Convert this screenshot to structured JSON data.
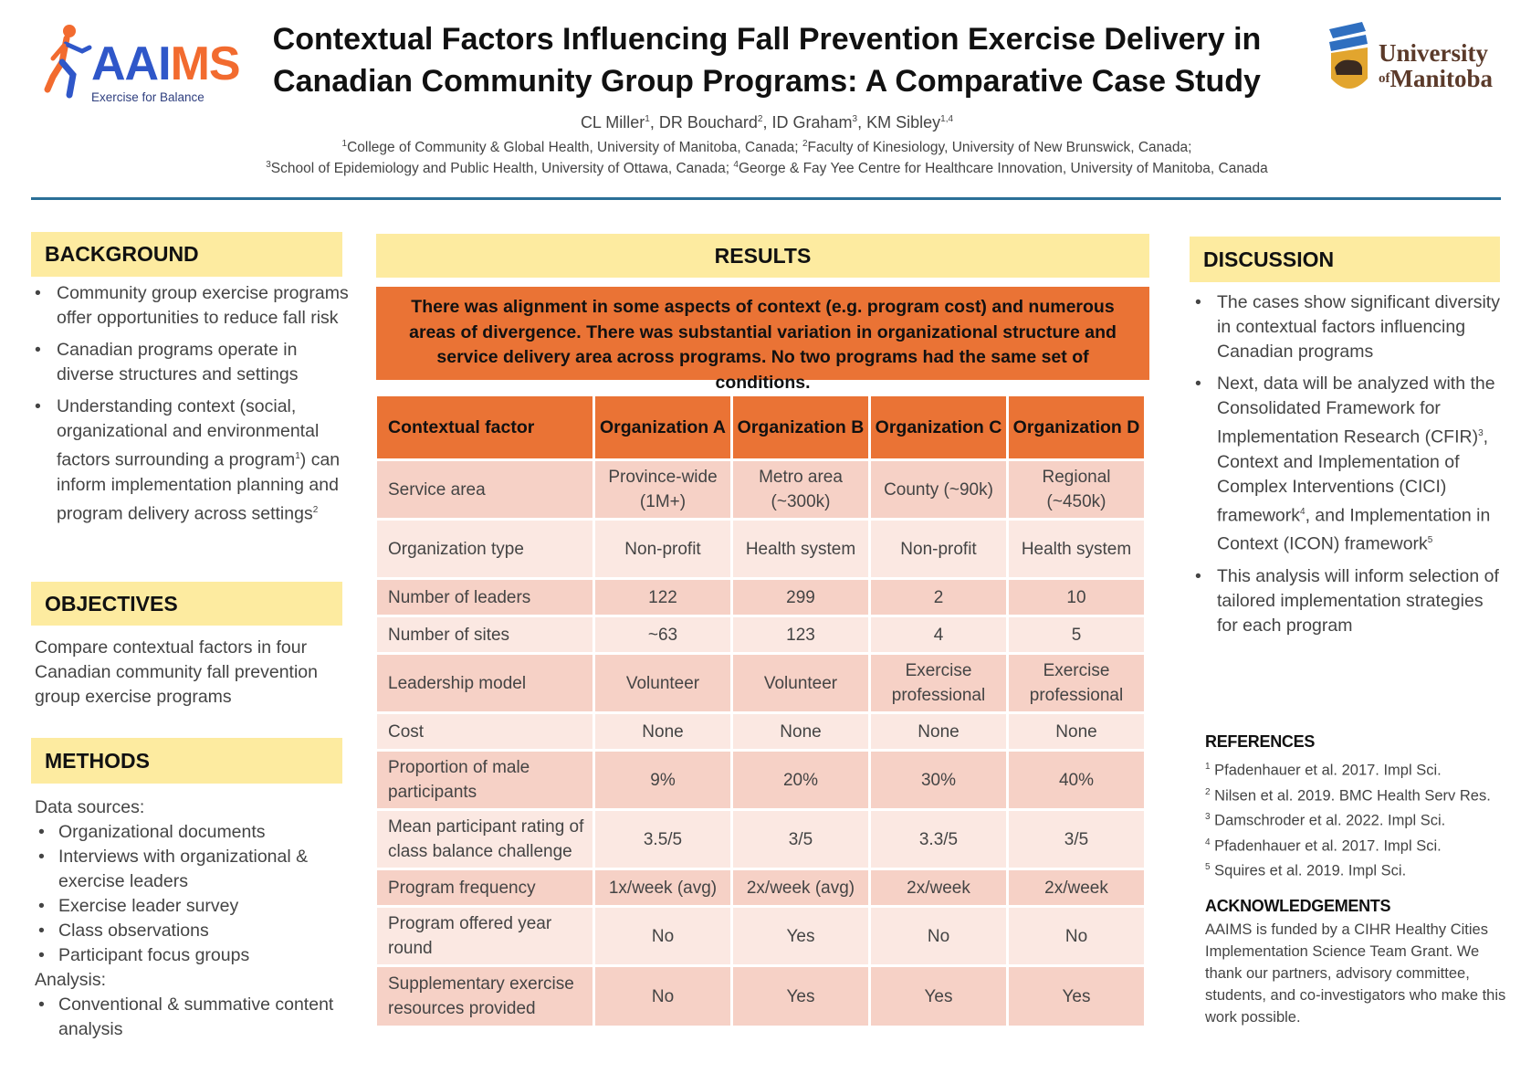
{
  "header": {
    "aaims_logo": {
      "name": "AAIMS",
      "tagline": "Exercise for Balance"
    },
    "title_line1": "Contextual Factors Influencing Fall Prevention Exercise Delivery in",
    "title_line2": "Canadian Community Group Programs: A Comparative Case Study",
    "authors": [
      {
        "name": "CL Miller",
        "sup": "1"
      },
      {
        "name": "DR Bouchard",
        "sup": "2"
      },
      {
        "name": "ID Graham",
        "sup": "3"
      },
      {
        "name": "KM Sibley",
        "sup": "1,4"
      }
    ],
    "affiliations": [
      {
        "sup": "1",
        "text": "College of Community & Global Health, University of Manitoba, Canada;"
      },
      {
        "sup": "2",
        "text": "Faculty of Kinesiology, University of New Brunswick, Canada;"
      },
      {
        "sup": "3",
        "text": "School of Epidemiology and Public Health, University of Ottawa, Canada;"
      },
      {
        "sup": "4",
        "text": "George & Fay Yee Centre for Healthcare Innovation, University of Manitoba, Canada"
      }
    ],
    "um_logo": {
      "line1": "University",
      "line2_of": "of",
      "line2": "Manitoba"
    }
  },
  "background": {
    "heading": "BACKGROUND",
    "bullets": [
      {
        "text": "Community group exercise programs offer opportunities to reduce fall risk"
      },
      {
        "text": "Canadian programs operate in diverse structures and settings"
      },
      {
        "text": "Understanding context (social, organizational and environmental factors surrounding a program",
        "sup": "1",
        "text2": ") can inform implementation planning and program delivery across settings",
        "sup2": "2"
      }
    ]
  },
  "objectives": {
    "heading": "OBJECTIVES",
    "text": "Compare contextual factors in four Canadian community fall prevention group exercise programs"
  },
  "methods": {
    "heading": "METHODS",
    "data_sources_label": "Data sources:",
    "data_sources": [
      "Organizational documents",
      "Interviews with organizational & exercise leaders",
      "Exercise leader survey",
      "Class observations",
      "Participant focus groups"
    ],
    "analysis_label": "Analysis:",
    "analysis": [
      "Conventional & summative content analysis"
    ]
  },
  "results": {
    "heading": "RESULTS",
    "summary": "There was alignment in some aspects of context (e.g. program cost) and numerous areas of divergence. There was substantial variation in organizational structure and service delivery area across programs. No two programs had the same set of conditions.",
    "table": {
      "headers": [
        "Contextual factor",
        "Organization A",
        "Organization B",
        "Organization C",
        "Organization D"
      ],
      "rows": [
        [
          "Service area",
          "Province-wide (1M+)",
          "Metro area (~300k)",
          "County (~90k)",
          "Regional (~450k)"
        ],
        [
          "Organization type",
          "Non-profit",
          "Health system",
          "Non-profit",
          "Health system"
        ],
        [
          "Number of leaders",
          "122",
          "299",
          "2",
          "10"
        ],
        [
          "Number of sites",
          "~63",
          "123",
          "4",
          "5"
        ],
        [
          "Leadership model",
          "Volunteer",
          "Volunteer",
          "Exercise professional",
          "Exercise professional"
        ],
        [
          "Cost",
          "None",
          "None",
          "None",
          "None"
        ],
        [
          "Proportion of male participants",
          "9%",
          "20%",
          "30%",
          "40%"
        ],
        [
          "Mean participant rating of class balance challenge",
          "3.5/5",
          "3/5",
          "3.3/5",
          "3/5"
        ],
        [
          "Program frequency",
          "1x/week (avg)",
          "2x/week (avg)",
          "2x/week",
          "2x/week"
        ],
        [
          "Program offered year round",
          "No",
          "Yes",
          "No",
          "No"
        ],
        [
          "Supplementary exercise resources provided",
          "No",
          "Yes",
          "Yes",
          "Yes"
        ]
      ]
    }
  },
  "discussion": {
    "heading": "DISCUSSION",
    "bullet1": "The cases show significant diversity in contextual factors influencing Canadian programs",
    "bullet2_a": "Next, data will be analyzed with the Consolidated Framework for Implementation Research (CFIR)",
    "bullet2_sup1": "3",
    "bullet2_b": ", Context and Implementation of Complex Interventions (CICI) framework",
    "bullet2_sup2": "4",
    "bullet2_c": ", and Implementation in Context (ICON) framework",
    "bullet2_sup3": "5",
    "bullet3": "This analysis will inform selection of tailored implementation strategies for each program"
  },
  "references": {
    "heading": "REFERENCES",
    "items": [
      {
        "n": "1",
        "text": "Pfadenhauer et al. 2017. Impl Sci."
      },
      {
        "n": "2",
        "text": "Nilsen et al. 2019. BMC Health Serv Res."
      },
      {
        "n": "3",
        "text": "Damschroder et al. 2022. Impl Sci."
      },
      {
        "n": "4",
        "text": "Pfadenhauer et al. 2017. Impl Sci."
      },
      {
        "n": "5",
        "text": "Squires et al. 2019. Impl Sci."
      }
    ]
  },
  "acknowledgements": {
    "heading": "ACKNOWLEDGEMENTS",
    "text": "AAIMS is funded by a CIHR Healthy Cities Implementation Science Team Grant. We thank our partners, advisory committee, students, and co-investigators who make this work possible."
  },
  "colors": {
    "section_header_bg": "#fdeba0",
    "accent_orange": "#ea7335",
    "row_dark": "#f6d1c6",
    "row_light": "#fbe8e2",
    "rule_blue": "#2a6f97",
    "aaims_blue": "#2f57c9",
    "aaims_orange": "#f26b2f",
    "um_brown": "#5b3a2a"
  }
}
